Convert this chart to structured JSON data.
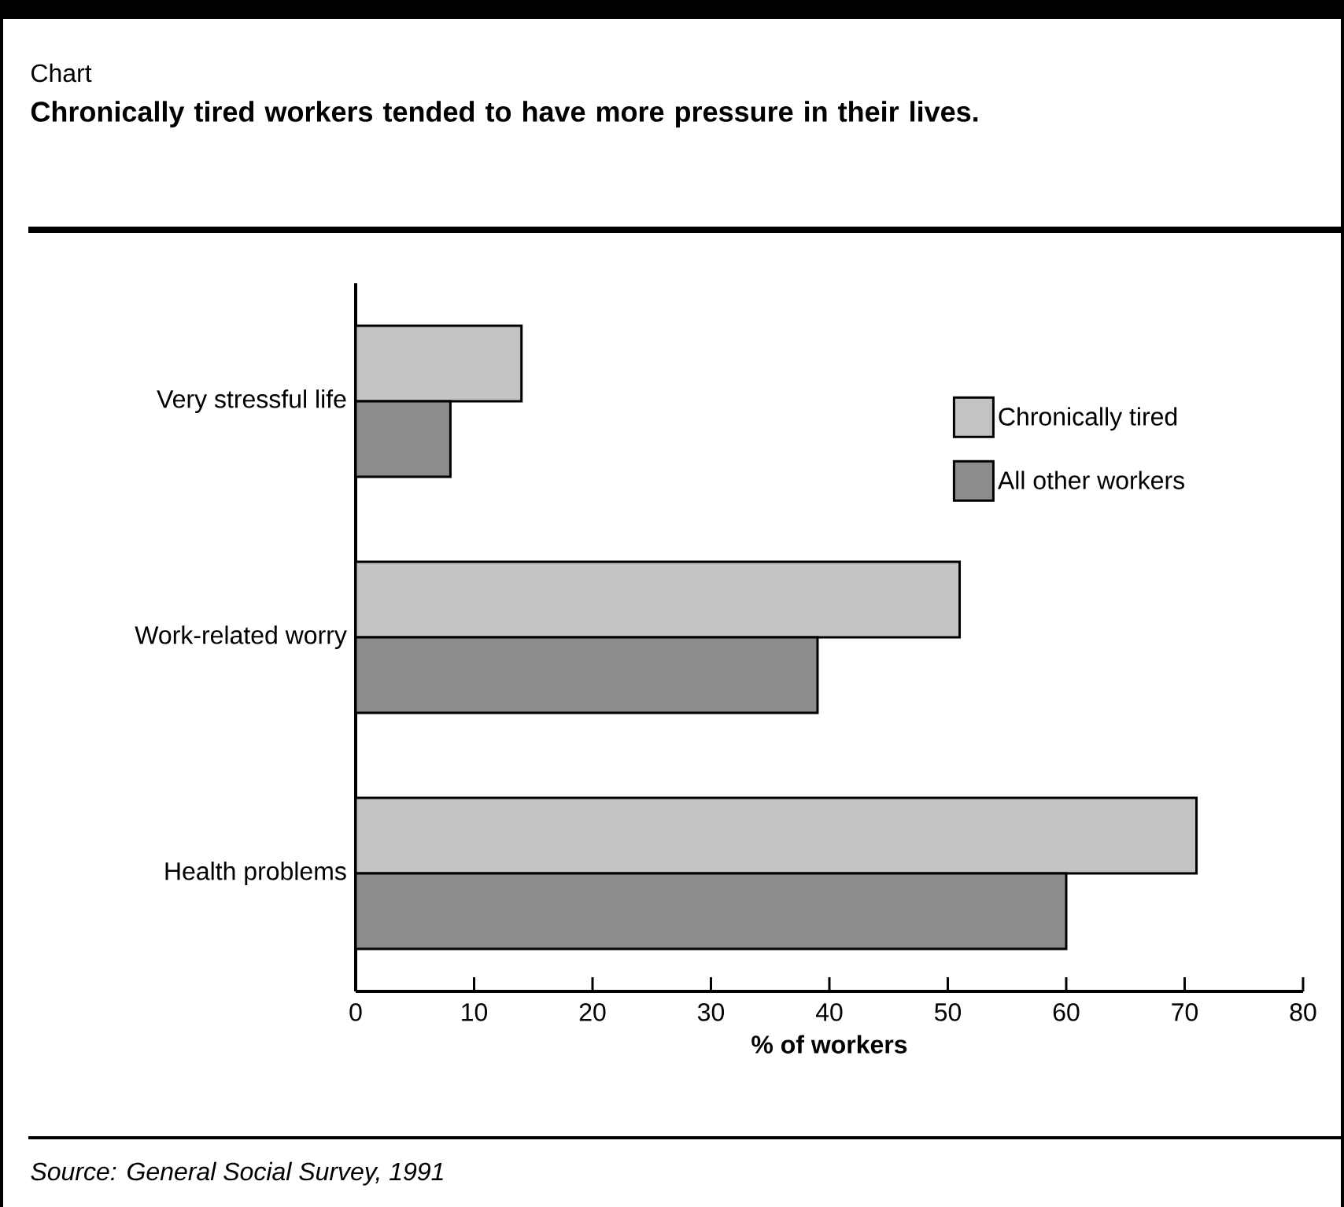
{
  "chart_data": {
    "type": "bar",
    "orientation": "horizontal",
    "title": "Chronically tired workers tended to have more pressure in their lives.",
    "xlabel": "% of workers",
    "categories": [
      "Very stressful life",
      "Work-related worry",
      "Health problems"
    ],
    "series": [
      {
        "name": "Chronically tired",
        "color": "#c3c3c3",
        "values": [
          14,
          51,
          71
        ]
      },
      {
        "name": "All other workers",
        "color": "#8c8c8c",
        "values": [
          8,
          39,
          60
        ]
      }
    ],
    "xlim": [
      0,
      80
    ],
    "xticks": [
      0,
      10,
      20,
      30,
      40,
      50,
      60,
      70,
      80
    ],
    "legend": "top right",
    "annotations": [
      "Chart",
      "Source: General Social Survey, 1991"
    ]
  }
}
